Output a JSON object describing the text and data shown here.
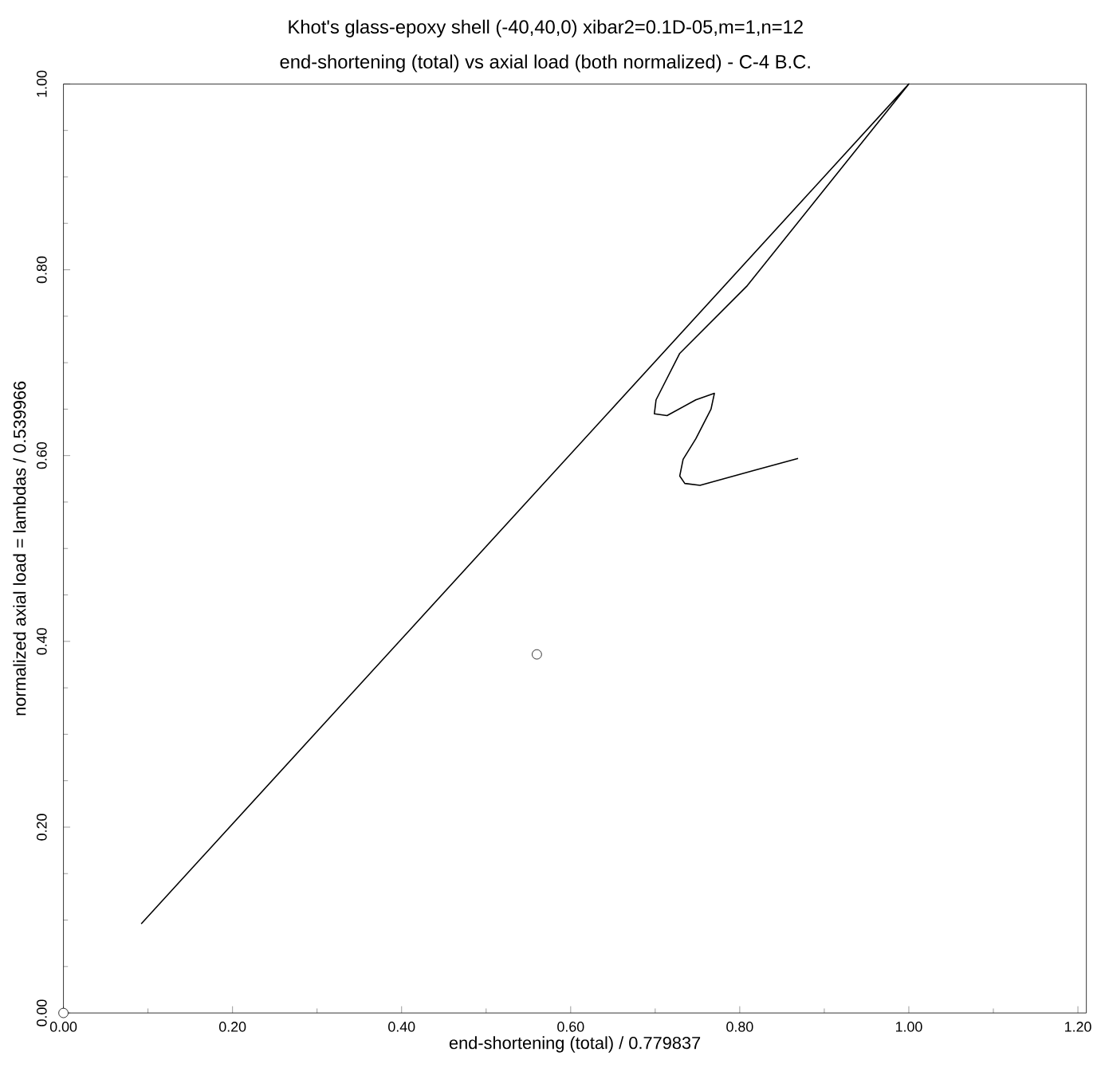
{
  "chart_data": {
    "type": "line",
    "title": "Khot's glass-epoxy shell (-40,40,0) xibar2=0.1D-05,m=1,n=12",
    "subtitle": "end-shortening (total) vs axial load (both normalized) - C-4 B.C.",
    "xlabel": "end-shortening (total) / 0.779837",
    "ylabel": "normalized axial load = lambdas / 0.539966",
    "xlim": [
      0,
      1.21
    ],
    "ylim": [
      0,
      1.0
    ],
    "xticks": [
      {
        "value": 0,
        "label": "0.00"
      },
      {
        "value": 0.2,
        "label": "0.20"
      },
      {
        "value": 0.4,
        "label": "0.40"
      },
      {
        "value": 0.6,
        "label": "0.60"
      },
      {
        "value": 0.8,
        "label": "0.80"
      },
      {
        "value": 1.0,
        "label": "1.00"
      },
      {
        "value": 1.2,
        "label": "1.20"
      }
    ],
    "yticks": [
      {
        "value": 0,
        "label": "0.00"
      },
      {
        "value": 0.2,
        "label": "0.20"
      },
      {
        "value": 0.4,
        "label": "0.40"
      },
      {
        "value": 0.6,
        "label": "0.60"
      },
      {
        "value": 0.8,
        "label": "0.80"
      },
      {
        "value": 1.0,
        "label": "1.00"
      }
    ],
    "series": [
      {
        "color": "#000000",
        "marker": "none",
        "x": [
          0.092,
          1.0,
          0.809,
          0.729,
          0.701,
          0.699,
          0.714,
          0.748,
          0.77,
          0.766,
          0.748,
          0.733,
          0.729,
          0.735,
          0.753,
          0.817,
          0.869
        ],
        "values": [
          0.096,
          1.0,
          0.783,
          0.71,
          0.66,
          0.645,
          0.643,
          0.66,
          0.667,
          0.65,
          0.618,
          0.596,
          0.578,
          0.57,
          0.568,
          0.584,
          0.597
        ]
      },
      {
        "type": "scatter",
        "color": "#000000",
        "marker": "circle",
        "x": [
          0
        ],
        "values": [
          0
        ]
      },
      {
        "type": "scatter",
        "color": "#000000",
        "marker": "circle",
        "x": [
          0.56
        ],
        "values": [
          0.386
        ]
      }
    ]
  }
}
